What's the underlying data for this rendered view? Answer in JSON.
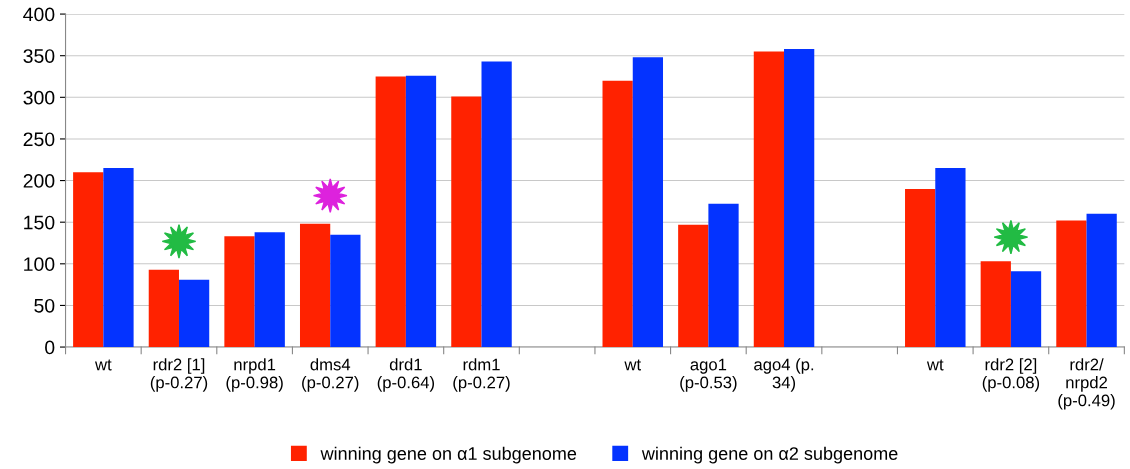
{
  "chart_data": {
    "type": "bar",
    "categories": [
      "wt",
      "rdr2 [1]\n(p-0.27)",
      "nrpd1\n(p-0.98)",
      "dms4\n(p-0.27)",
      "drd1\n(p-0.64)",
      "rdm1\n(p-0.27)",
      null,
      "wt",
      "ago1\n(p-0.53)",
      "ago4 (p.\n34)",
      null,
      "wt",
      "rdr2 [2]\n(p-0.08)",
      "rdr2/\nnrpd2\n(p-0.49)"
    ],
    "series": [
      {
        "name": "winning gene on α1 subgenome",
        "color": "#ff2200",
        "values": [
          210,
          93,
          133,
          148,
          325,
          301,
          null,
          320,
          147,
          355,
          null,
          190,
          103,
          152
        ]
      },
      {
        "name": "winning gene on α2 subgenome",
        "color": "#0433ff",
        "values": [
          215,
          81,
          138,
          135,
          326,
          343,
          null,
          348,
          172,
          358,
          null,
          215,
          91,
          160
        ]
      }
    ],
    "ylim": [
      0,
      400
    ],
    "yticks": [
      0,
      50,
      100,
      150,
      200,
      250,
      300,
      350,
      400
    ],
    "grid": "y",
    "legend": "bottom"
  }
}
